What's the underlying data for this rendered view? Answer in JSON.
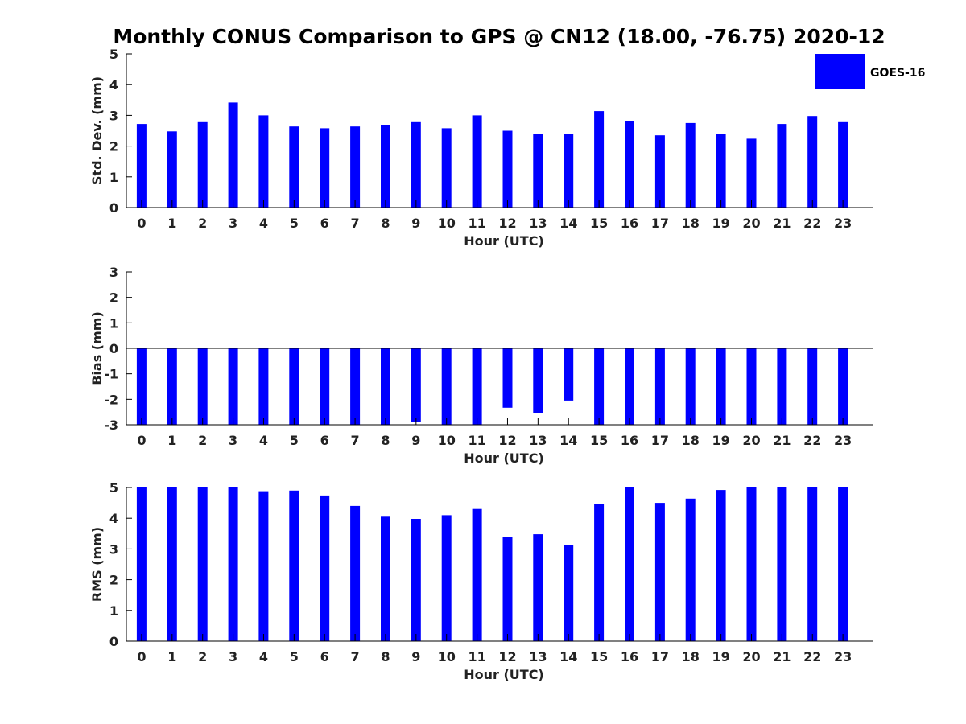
{
  "title": "Monthly CONUS Comparison to GPS @ CN12 (18.00, -76.75) 2020-12",
  "legend": {
    "label": "GOES-16",
    "color": "#0000ff",
    "position": "top-right"
  },
  "bar_color": "#0000ff",
  "chart_data": [
    {
      "type": "bar",
      "categories": [
        "0",
        "1",
        "2",
        "3",
        "4",
        "5",
        "6",
        "7",
        "8",
        "9",
        "10",
        "11",
        "12",
        "13",
        "14",
        "15",
        "16",
        "17",
        "18",
        "19",
        "20",
        "21",
        "22",
        "23"
      ],
      "series": [
        {
          "name": "GOES-16",
          "values": [
            2.72,
            2.48,
            2.78,
            3.42,
            3.0,
            2.64,
            2.58,
            2.64,
            2.68,
            2.78,
            2.58,
            3.0,
            2.5,
            2.4,
            2.4,
            3.14,
            2.8,
            2.35,
            2.75,
            2.4,
            2.24,
            2.72,
            2.98,
            2.78
          ]
        }
      ],
      "xlabel": "Hour (UTC)",
      "ylabel": "Std. Dev. (mm)",
      "ylim": [
        0,
        5
      ],
      "yticks": [
        "0",
        "1",
        "2",
        "3",
        "4",
        "5"
      ],
      "zero_line": false,
      "grid": false
    },
    {
      "type": "bar",
      "categories": [
        "0",
        "1",
        "2",
        "3",
        "4",
        "5",
        "6",
        "7",
        "8",
        "9",
        "10",
        "11",
        "12",
        "13",
        "14",
        "15",
        "16",
        "17",
        "18",
        "19",
        "20",
        "21",
        "22",
        "23"
      ],
      "series": [
        {
          "name": "GOES-16",
          "values": [
            -3.0,
            -3.0,
            -3.0,
            -3.0,
            -3.0,
            -3.0,
            -3.0,
            -3.0,
            -3.0,
            -2.88,
            -3.0,
            -3.0,
            -2.33,
            -2.53,
            -2.05,
            -3.0,
            -3.0,
            -3.0,
            -3.0,
            -3.0,
            -3.0,
            -3.0,
            -3.0,
            -3.0
          ]
        }
      ],
      "xlabel": "Hour (UTC)",
      "ylabel": "Bias (mm)",
      "ylim": [
        -3,
        3
      ],
      "yticks": [
        "-3",
        "-2",
        "-1",
        "0",
        "1",
        "2",
        "3"
      ],
      "zero_line": true,
      "grid": false
    },
    {
      "type": "bar",
      "categories": [
        "0",
        "1",
        "2",
        "3",
        "4",
        "5",
        "6",
        "7",
        "8",
        "9",
        "10",
        "11",
        "12",
        "13",
        "14",
        "15",
        "16",
        "17",
        "18",
        "19",
        "20",
        "21",
        "22",
        "23"
      ],
      "series": [
        {
          "name": "GOES-16",
          "values": [
            5.0,
            5.0,
            5.0,
            5.0,
            4.88,
            4.9,
            4.74,
            4.4,
            4.05,
            3.98,
            4.1,
            4.3,
            3.4,
            3.48,
            3.14,
            4.46,
            5.0,
            4.5,
            4.64,
            4.92,
            5.0,
            5.0,
            5.0,
            5.0
          ]
        }
      ],
      "xlabel": "Hour (UTC)",
      "ylabel": "RMS (mm)",
      "ylim": [
        0,
        5
      ],
      "yticks": [
        "0",
        "1",
        "2",
        "3",
        "4",
        "5"
      ],
      "zero_line": false,
      "grid": false
    }
  ]
}
